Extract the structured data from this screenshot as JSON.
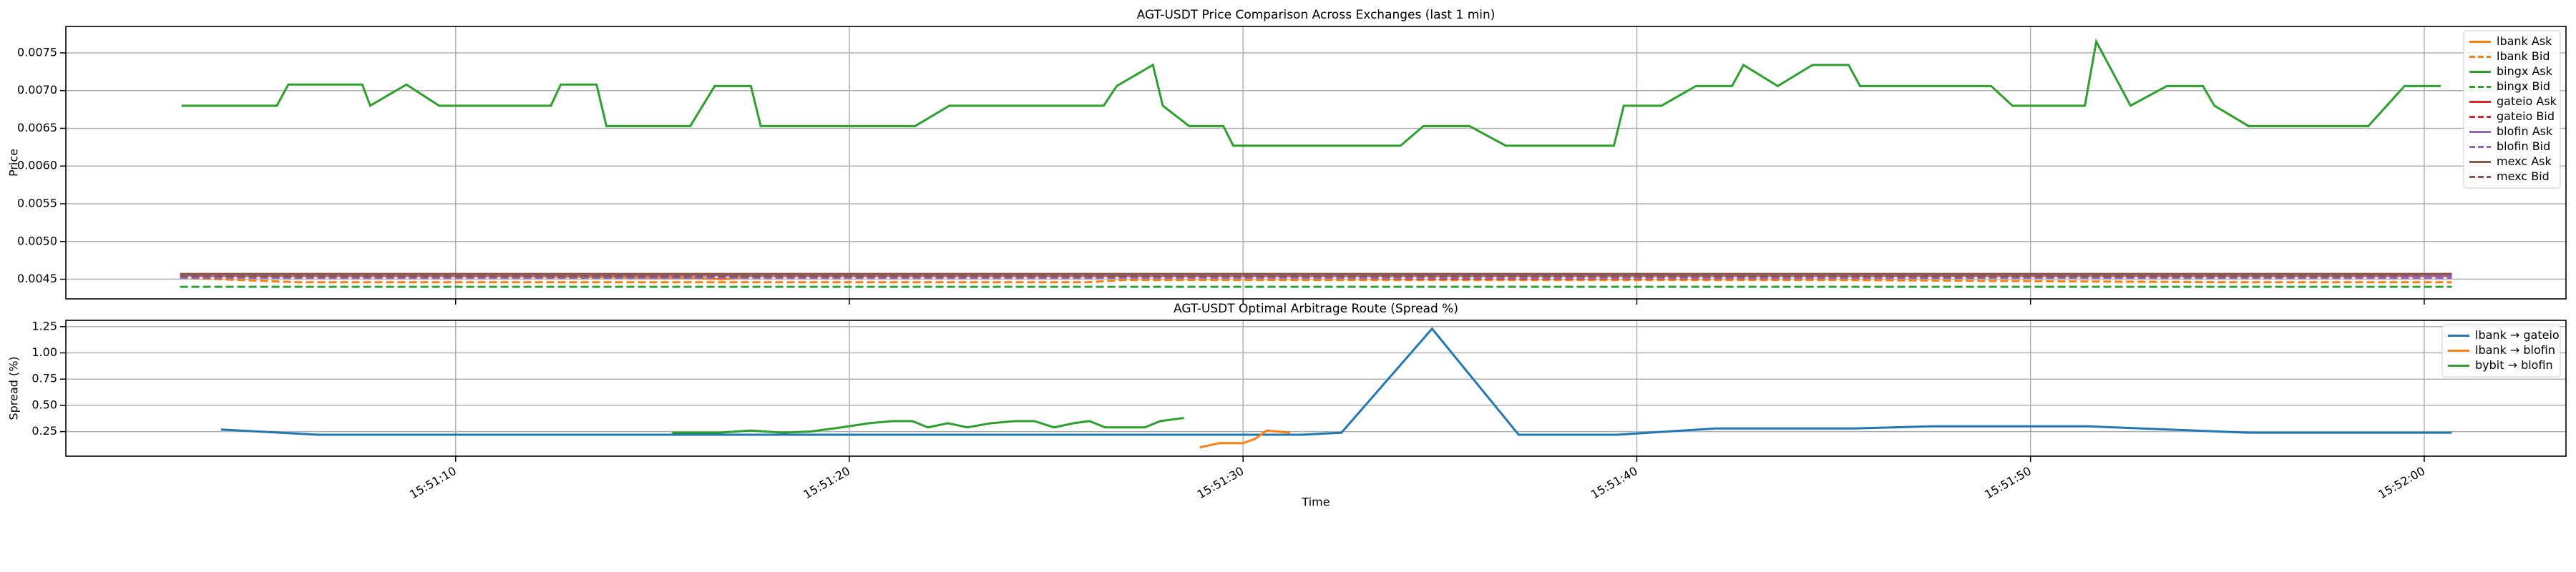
{
  "chart_data": [
    {
      "type": "line",
      "title": "AGT-USDT Price Comparison Across Exchanges (last 1 min)",
      "ylabel": "Price",
      "xlim": [
        0.1,
        63.6
      ],
      "ylim": [
        0.00424,
        0.00785
      ],
      "yticks": [
        0.0045,
        {
          "value": 0.005,
          "label": "0.0050"
        },
        0.0055,
        {
          "value": 0.006,
          "label": "0.0060"
        },
        0.0065,
        {
          "value": 0.007,
          "label": "0.0070"
        },
        0.0075
      ],
      "grid": true,
      "legend": "upper right",
      "series": [
        {
          "name": "lbank Ask",
          "color": "#ff7f0e",
          "linestyle": "solid",
          "x": [
            3.0,
            3.5,
            10,
            16,
            16.8,
            17.5,
            60.7
          ],
          "values": [
            0.00455,
            0.00454,
            0.00454,
            0.00452,
            0.0045,
            0.00454,
            0.00454
          ]
        },
        {
          "name": "lbank Bid",
          "color": "#ff7f0e",
          "linestyle": "dashed",
          "x": [
            3.0,
            6,
            26,
            27,
            45,
            55,
            60.7
          ],
          "values": [
            0.00452,
            0.00446,
            0.00446,
            0.00449,
            0.00449,
            0.00446,
            0.00446
          ]
        },
        {
          "name": "bingx Ask",
          "color": "#2ca02c",
          "linestyle": "solid",
          "x": [
            3.04,
            5.46,
            5.75,
            7.63,
            7.83,
            8.75,
            9.58,
            12.42,
            12.67,
            13.58,
            13.83,
            15.96,
            16.58,
            17.5,
            17.75,
            21.67,
            22.54,
            26.46,
            26.79,
            27.71,
            27.96,
            28.63,
            29.5,
            29.75,
            34.0,
            34.58,
            35.75,
            36.67,
            39.42,
            39.67,
            40.63,
            41.5,
            42.42,
            42.71,
            43.58,
            44.46,
            45.38,
            45.67,
            49.0,
            49.54,
            51.38,
            51.67,
            52.54,
            53.46,
            54.38,
            54.67,
            55.54,
            58.58,
            59.5,
            60.42
          ],
          "values": [
            0.0068,
            0.0068,
            0.00708,
            0.00708,
            0.0068,
            0.00708,
            0.0068,
            0.0068,
            0.00708,
            0.00708,
            0.00653,
            0.00653,
            0.00706,
            0.00706,
            0.00653,
            0.00653,
            0.0068,
            0.0068,
            0.00706,
            0.00734,
            0.0068,
            0.00653,
            0.00653,
            0.00627,
            0.00627,
            0.00653,
            0.00653,
            0.00627,
            0.00627,
            0.0068,
            0.0068,
            0.00706,
            0.00706,
            0.00734,
            0.00706,
            0.00734,
            0.00734,
            0.00706,
            0.00706,
            0.0068,
            0.0068,
            0.00765,
            0.0068,
            0.00706,
            0.00706,
            0.0068,
            0.00653,
            0.00653,
            0.00706,
            0.00706
          ]
        },
        {
          "name": "bingx Bid",
          "color": "#2ca02c",
          "linestyle": "dashed",
          "x": [
            3.0,
            60.7
          ],
          "values": [
            0.0044,
            0.0044
          ]
        },
        {
          "name": "gateio Ask",
          "color": "#d62728",
          "linestyle": "solid",
          "x": [
            3.0,
            60.7
          ],
          "values": [
            0.00456,
            0.00456
          ]
        },
        {
          "name": "gateio Bid",
          "color": "#d62728",
          "linestyle": "dashed",
          "x": [
            3.0,
            29,
            35,
            60.7
          ],
          "values": [
            0.00453,
            0.00453,
            0.00451,
            0.00453
          ]
        },
        {
          "name": "blofin Ask",
          "color": "#9467bd",
          "linestyle": "solid",
          "x": [
            3.0,
            60.7
          ],
          "values": [
            0.00455,
            0.00455
          ]
        },
        {
          "name": "blofin Bid",
          "color": "#9467bd",
          "linestyle": "dashed",
          "x": [
            3.0,
            60.7
          ],
          "values": [
            0.00452,
            0.00452
          ]
        },
        {
          "name": "mexc Ask",
          "color": "#8c564b",
          "linestyle": "solid",
          "x": [
            3.0,
            60.7
          ],
          "values": [
            0.00457,
            0.00457
          ]
        },
        {
          "name": "mexc Bid",
          "color": "#8c564b",
          "linestyle": "dashed",
          "x": [
            3.0,
            58,
            60.7
          ],
          "values": [
            0.00454,
            0.00454,
            0.00457
          ]
        }
      ]
    },
    {
      "type": "line",
      "title": "AGT-USDT Optimal Arbitrage Route (Spread %)",
      "ylabel": "Spread (%)",
      "xlabel": "Time",
      "xlim": [
        0.1,
        63.6
      ],
      "ylim": [
        0.016,
        1.31
      ],
      "xticks": [
        {
          "value": 10,
          "label": "15:51:10"
        },
        {
          "value": 20,
          "label": "15:51:20"
        },
        {
          "value": 30,
          "label": "15:51:30"
        },
        {
          "value": 40,
          "label": "15:51:40"
        },
        {
          "value": 50,
          "label": "15:51:50"
        },
        {
          "value": 60,
          "label": "15:52:00"
        }
      ],
      "yticks": [
        0.25,
        {
          "value": 0.5,
          "label": "0.50"
        },
        0.75,
        {
          "value": 1,
          "label": "1.00"
        },
        1.25
      ],
      "grid": true,
      "legend": "upper right",
      "series": [
        {
          "name": "lbank → gateio",
          "color": "#1f77b4",
          "linestyle": "solid",
          "x": [
            4.04,
            6.5,
            31.5,
            32.5,
            34.8,
            37.0,
            39.5,
            42,
            45.5,
            47.5,
            51.5,
            55.5,
            60.7
          ],
          "values": [
            0.27,
            0.22,
            0.22,
            0.24,
            1.23,
            0.22,
            0.22,
            0.28,
            0.28,
            0.3,
            0.3,
            0.24,
            0.24
          ]
        },
        {
          "name": "lbank → blofin",
          "color": "#ff7f0e",
          "linestyle": "solid",
          "x": [
            28.9,
            29.4,
            30.0,
            30.3,
            30.6,
            31.2
          ],
          "values": [
            0.1,
            0.14,
            0.14,
            0.18,
            0.26,
            0.24
          ]
        },
        {
          "name": "bybit → blofin",
          "color": "#2ca02c",
          "linestyle": "solid",
          "x": [
            15.5,
            16.7,
            17.5,
            18.3,
            19,
            19.8,
            20.5,
            21.1,
            21.6,
            22.0,
            22.5,
            23,
            23.6,
            24.2,
            24.7,
            25.2,
            25.7,
            26.1,
            26.5,
            27.5,
            27.9,
            28.5
          ],
          "values": [
            0.24,
            0.24,
            0.26,
            0.24,
            0.25,
            0.29,
            0.33,
            0.35,
            0.35,
            0.29,
            0.33,
            0.29,
            0.33,
            0.35,
            0.35,
            0.29,
            0.33,
            0.35,
            0.29,
            0.29,
            0.35,
            0.38
          ]
        }
      ]
    }
  ]
}
